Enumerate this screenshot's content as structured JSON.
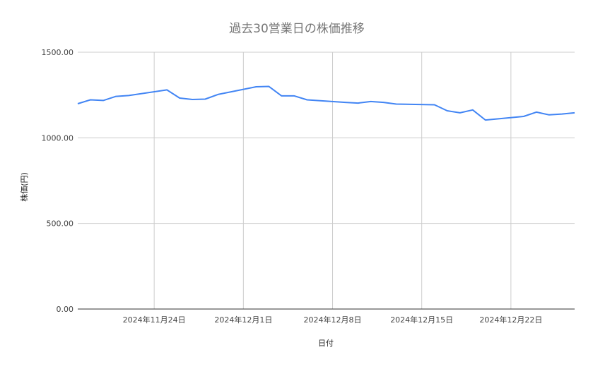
{
  "chart_data": {
    "type": "line",
    "title": "過去30営業日の株価推移",
    "xlabel": "日付",
    "ylabel": "株価(円)",
    "ylim": [
      0,
      1500
    ],
    "xlim": [
      "2024-11-18",
      "2024-12-27"
    ],
    "yticks": [
      0,
      500,
      1000,
      1500
    ],
    "ytick_labels": [
      "0.00",
      "500.00",
      "1000.00",
      "1500.00"
    ],
    "xticks": [
      "2024-11-24",
      "2024-12-01",
      "2024-12-08",
      "2024-12-15",
      "2024-12-22"
    ],
    "xtick_labels": [
      "2024年11月24日",
      "2024年12月1日",
      "2024年12月8日",
      "2024年12月15日",
      "2024年12月22日"
    ],
    "grid": true,
    "legend": "none",
    "colors": {
      "line": "#4285f4",
      "grid": "#cccccc",
      "axis": "#333333"
    },
    "x": [
      "2024-11-18",
      "2024-11-19",
      "2024-11-20",
      "2024-11-21",
      "2024-11-22",
      "2024-11-25",
      "2024-11-26",
      "2024-11-27",
      "2024-11-28",
      "2024-11-29",
      "2024-12-02",
      "2024-12-03",
      "2024-12-04",
      "2024-12-05",
      "2024-12-06",
      "2024-12-09",
      "2024-12-10",
      "2024-12-11",
      "2024-12-12",
      "2024-12-13",
      "2024-12-16",
      "2024-12-17",
      "2024-12-18",
      "2024-12-19",
      "2024-12-20",
      "2024-12-23",
      "2024-12-24",
      "2024-12-25",
      "2024-12-26",
      "2024-12-27"
    ],
    "values": [
      1199,
      1222,
      1218,
      1242,
      1247,
      1280,
      1232,
      1224,
      1226,
      1253,
      1298,
      1300,
      1245,
      1245,
      1222,
      1207,
      1203,
      1212,
      1207,
      1197,
      1193,
      1158,
      1146,
      1163,
      1104,
      1125,
      1150,
      1134,
      1139,
      1146
    ]
  }
}
